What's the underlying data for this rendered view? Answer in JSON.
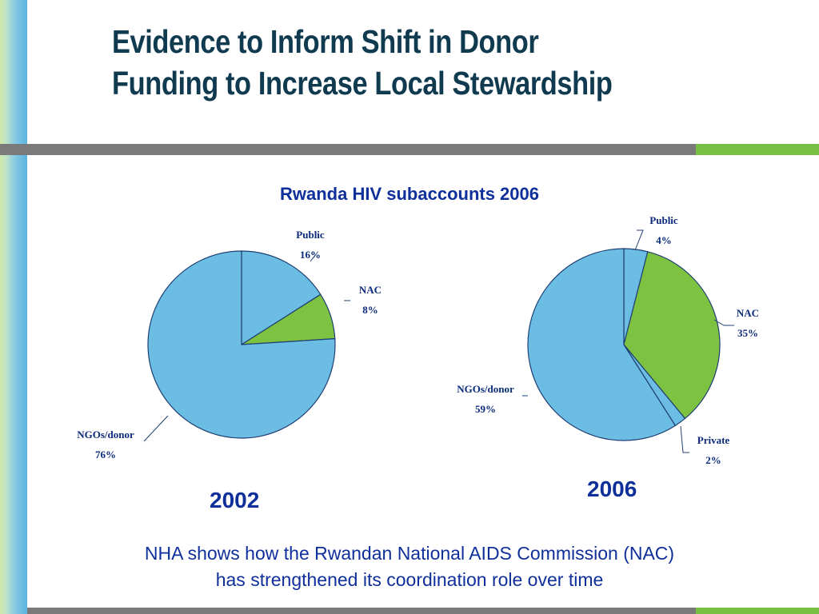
{
  "slide": {
    "title_line1": "Evidence to Inform Shift in Donor",
    "title_line2": "Funding to Increase Local Stewardship",
    "caption_line1": "NHA shows how the Rwandan National AIDS Commission (NAC)",
    "caption_line2": "has strengthened its coordination role over time"
  },
  "colors": {
    "blue": "#6bbde3",
    "green": "#7ec242",
    "outline": "#1f3f73",
    "text": "#0f2f9a"
  },
  "chart_data": {
    "title": "Rwanda HIV subaccounts 2006",
    "charts": [
      {
        "type": "pie",
        "year": "2002",
        "slices": [
          {
            "label": "Public",
            "value": 16,
            "value_label": "16%",
            "color": "#6bbde3"
          },
          {
            "label": "NAC",
            "value": 8,
            "value_label": "8%",
            "color": "#7ec242"
          },
          {
            "label": "NGOs/donor",
            "value": 76,
            "value_label": "76%",
            "color": "#6bbde3"
          }
        ]
      },
      {
        "type": "pie",
        "year": "2006",
        "slices": [
          {
            "label": "Public",
            "value": 4,
            "value_label": "4%",
            "color": "#6bbde3"
          },
          {
            "label": "NAC",
            "value": 35,
            "value_label": "35%",
            "color": "#7ec242"
          },
          {
            "label": "Private",
            "value": 2,
            "value_label": "2%",
            "color": "#6bbde3"
          },
          {
            "label": "NGOs/donor",
            "value": 59,
            "value_label": "59%",
            "color": "#6bbde3"
          }
        ]
      }
    ]
  }
}
